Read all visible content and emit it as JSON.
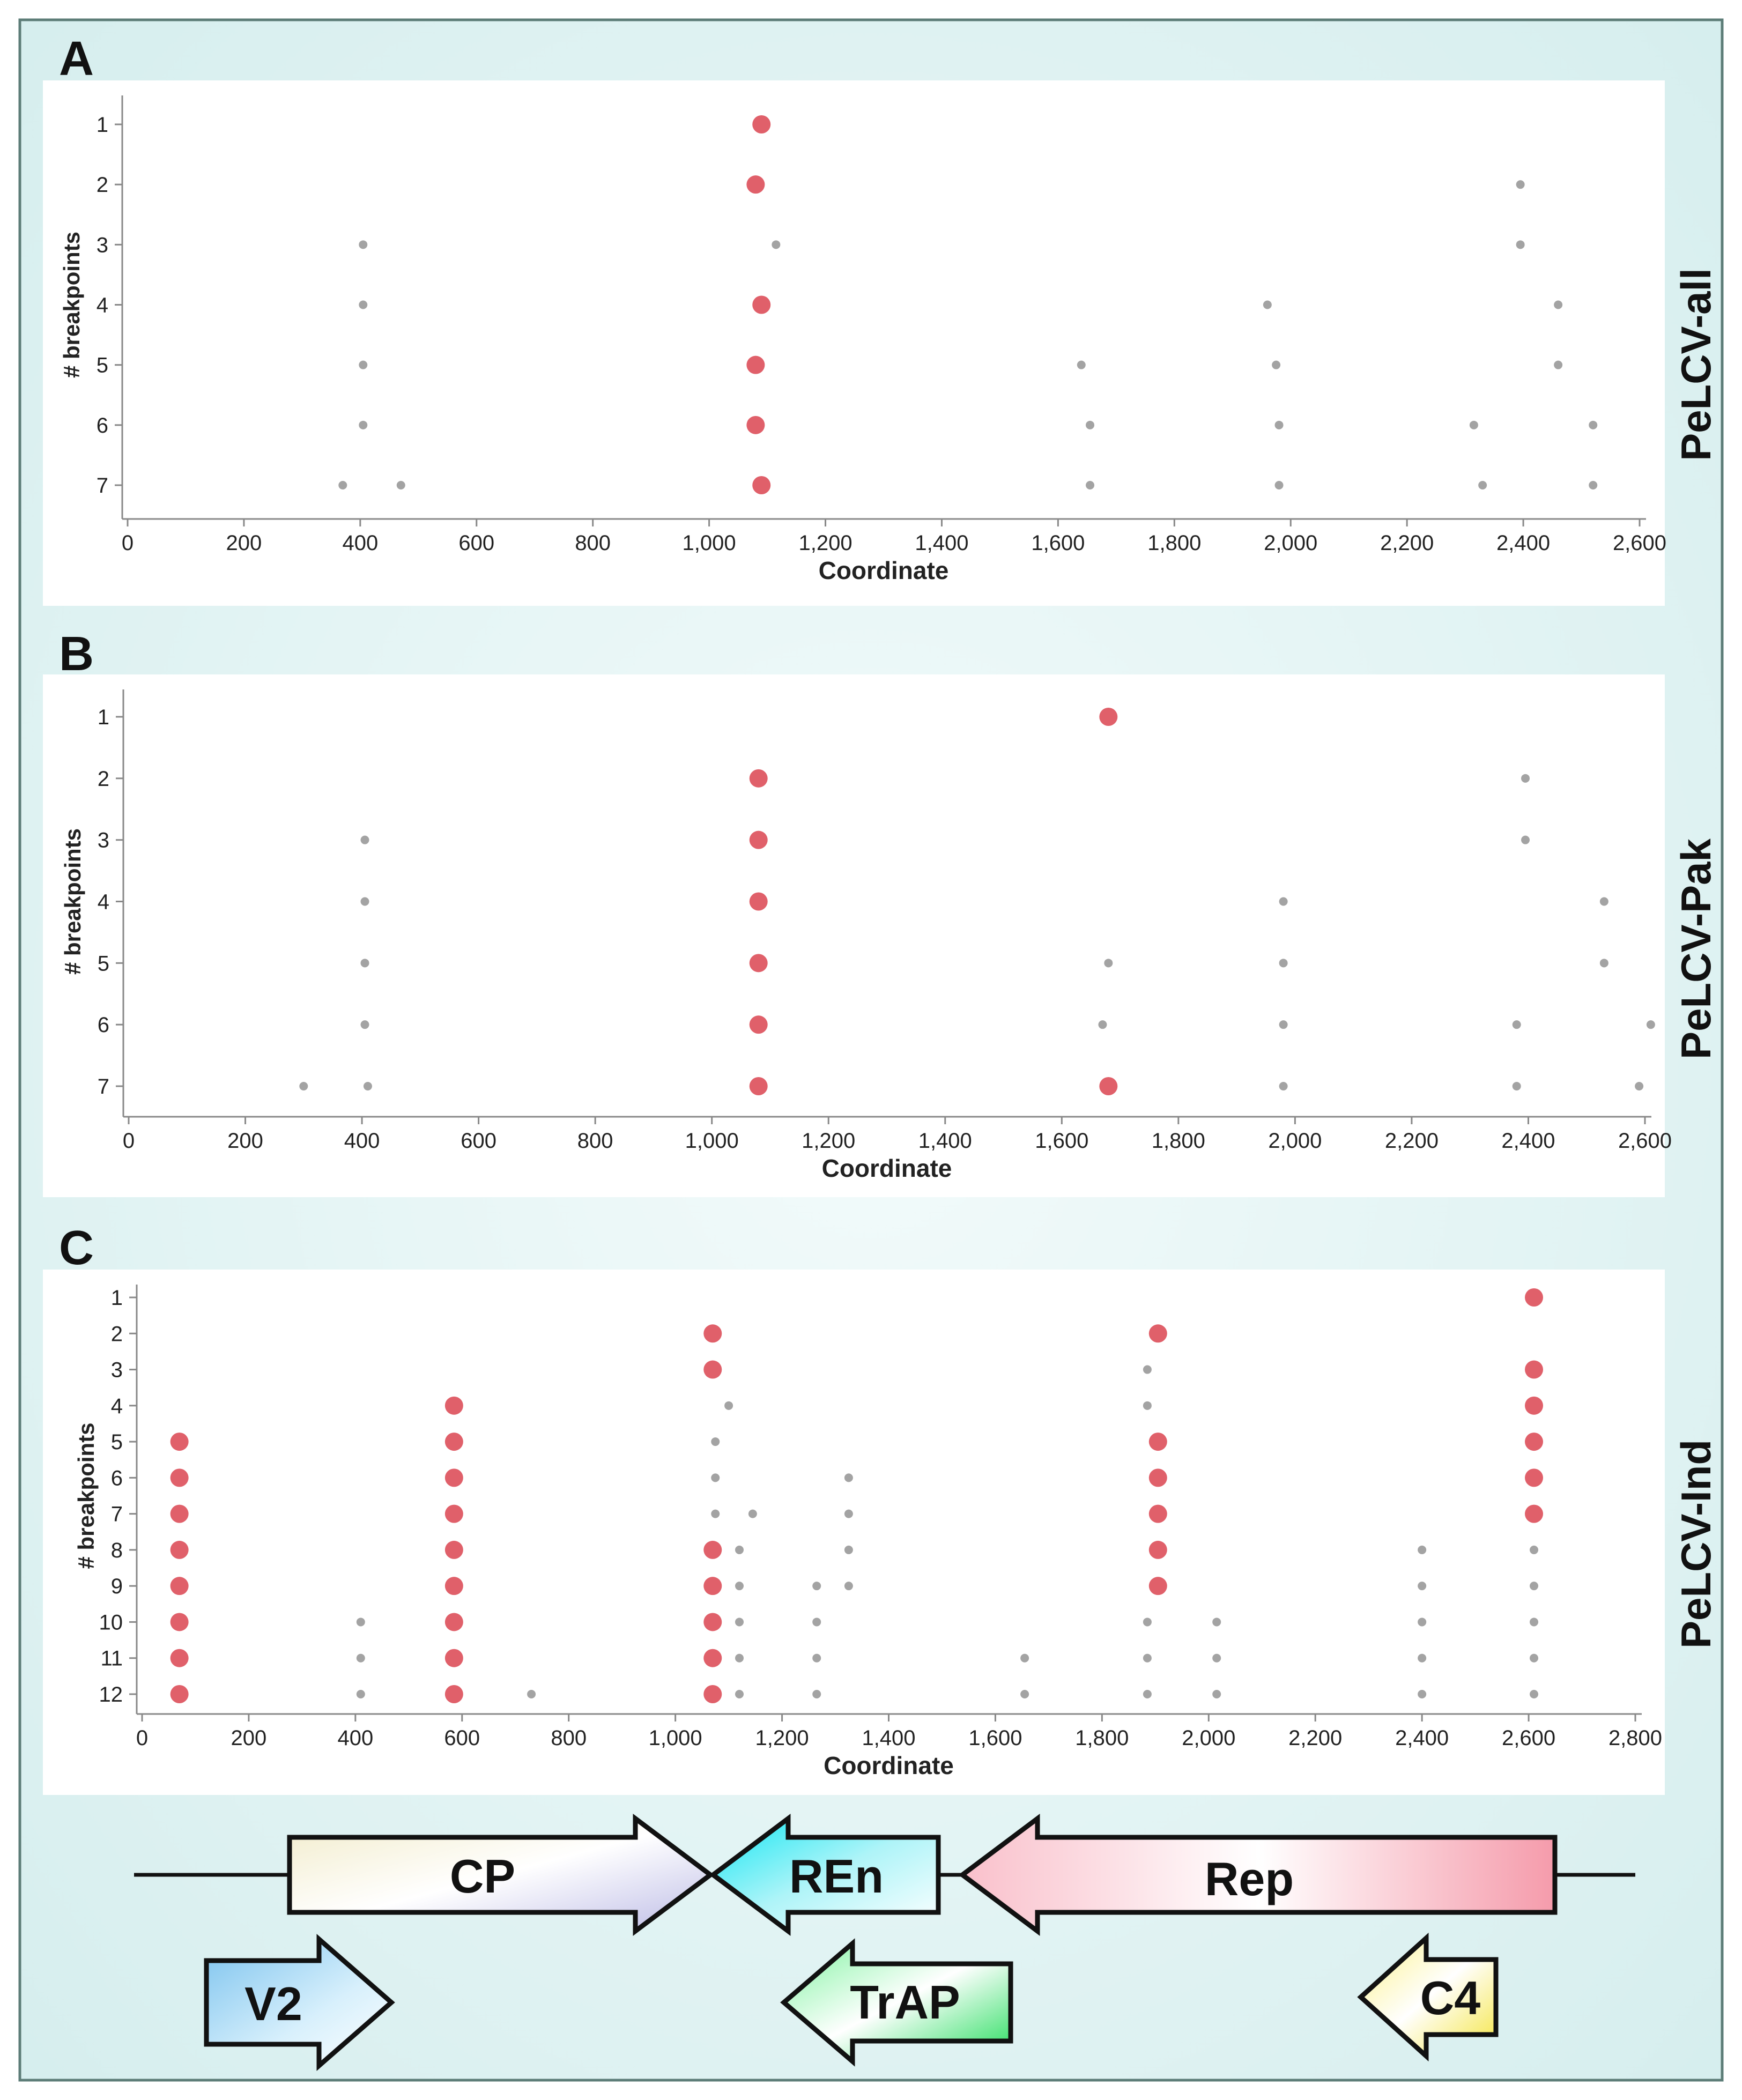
{
  "colors": {
    "background": "#e6f4f4",
    "panel": "#ffffff",
    "frame": "#5d7d78",
    "axis": "#888888",
    "major_dot": "#e0606a",
    "minor_dot": "#a3a3a3",
    "text": "#222222"
  },
  "panels": [
    {
      "letter": "A",
      "side_label": "PeLCV-all",
      "chart_title": ""
    },
    {
      "letter": "B",
      "side_label": "PeLCV-Pak",
      "chart_title": ""
    },
    {
      "letter": "C",
      "side_label": "PeLCV-Ind",
      "chart_title": ""
    }
  ],
  "genes": [
    {
      "label": "CP",
      "direction": "right",
      "gradient": [
        "#f2eccb",
        "#ffffff",
        "#bdbce6"
      ]
    },
    {
      "label": "REn",
      "direction": "left",
      "gradient": [
        "#12e6f2",
        "#aef4f8",
        "#ffffff"
      ]
    },
    {
      "label": "Rep",
      "direction": "left",
      "gradient": [
        "#f9c0cb",
        "#ffffff",
        "#f59bab"
      ]
    },
    {
      "label": "V2",
      "direction": "right",
      "gradient": [
        "#7cc3ee",
        "#d8f0fc",
        "#ffffff"
      ]
    },
    {
      "label": "TrAP",
      "direction": "left",
      "gradient": [
        "#7ff3a0",
        "#ffffff",
        "#1fdc58"
      ]
    },
    {
      "label": "C4",
      "direction": "left",
      "gradient": [
        "#fbf28a",
        "#ffffff",
        "#f4e43c"
      ]
    }
  ],
  "chart_data": [
    {
      "type": "scatter",
      "title": "",
      "xlabel": "Coordinate",
      "ylabel": "# breakpoints",
      "xlim": [
        0,
        2600
      ],
      "xticks": [
        0,
        200,
        400,
        600,
        800,
        1000,
        1200,
        1400,
        1600,
        1800,
        2000,
        2200,
        2400,
        2600
      ],
      "xtick_labels": [
        "0",
        "200",
        "400",
        "600",
        "800",
        "1,000",
        "1,200",
        "1,400",
        "1,600",
        "1,800",
        "2,000",
        "2,200",
        "2,400",
        "2,600"
      ],
      "yticks": [
        1,
        2,
        3,
        4,
        5,
        6,
        7
      ],
      "grid": false,
      "series": [
        {
          "name": "major",
          "points": [
            [
              1090,
              1
            ],
            [
              1080,
              2
            ],
            [
              1090,
              4
            ],
            [
              1080,
              5
            ],
            [
              1080,
              6
            ],
            [
              1090,
              7
            ]
          ]
        },
        {
          "name": "minor",
          "points": [
            [
              2395,
              2
            ],
            [
              405,
              3
            ],
            [
              1115,
              3
            ],
            [
              2395,
              3
            ],
            [
              405,
              4
            ],
            [
              1960,
              4
            ],
            [
              2460,
              4
            ],
            [
              405,
              5
            ],
            [
              1640,
              5
            ],
            [
              1975,
              5
            ],
            [
              2460,
              5
            ],
            [
              405,
              6
            ],
            [
              1655,
              6
            ],
            [
              1980,
              6
            ],
            [
              2315,
              6
            ],
            [
              2520,
              6
            ],
            [
              370,
              7
            ],
            [
              470,
              7
            ],
            [
              1655,
              7
            ],
            [
              1980,
              7
            ],
            [
              2330,
              7
            ],
            [
              2520,
              7
            ]
          ]
        }
      ]
    },
    {
      "type": "scatter",
      "title": "",
      "xlabel": "Coordinate",
      "ylabel": "# breakpoints",
      "xlim": [
        0,
        2600
      ],
      "xticks": [
        0,
        200,
        400,
        600,
        800,
        1000,
        1200,
        1400,
        1600,
        1800,
        2000,
        2200,
        2400,
        2600
      ],
      "xtick_labels": [
        "0",
        "200",
        "400",
        "600",
        "800",
        "1,000",
        "1,200",
        "1,400",
        "1,600",
        "1,800",
        "2,000",
        "2,200",
        "2,400",
        "2,600"
      ],
      "yticks": [
        1,
        2,
        3,
        4,
        5,
        6,
        7
      ],
      "grid": false,
      "series": [
        {
          "name": "major",
          "points": [
            [
              1680,
              1
            ],
            [
              1080,
              2
            ],
            [
              1080,
              3
            ],
            [
              1080,
              4
            ],
            [
              1080,
              5
            ],
            [
              1080,
              6
            ],
            [
              1080,
              7
            ],
            [
              1680,
              7
            ]
          ]
        },
        {
          "name": "minor",
          "points": [
            [
              2395,
              2
            ],
            [
              405,
              3
            ],
            [
              2395,
              3
            ],
            [
              405,
              4
            ],
            [
              1980,
              4
            ],
            [
              2530,
              4
            ],
            [
              405,
              5
            ],
            [
              1680,
              5
            ],
            [
              1980,
              5
            ],
            [
              2530,
              5
            ],
            [
              405,
              6
            ],
            [
              1670,
              6
            ],
            [
              1980,
              6
            ],
            [
              2380,
              6
            ],
            [
              2610,
              6
            ],
            [
              300,
              7
            ],
            [
              410,
              7
            ],
            [
              1980,
              7
            ],
            [
              2380,
              7
            ],
            [
              2590,
              7
            ]
          ]
        }
      ]
    },
    {
      "type": "scatter",
      "title": "",
      "xlabel": "Coordinate",
      "ylabel": "# breakpoints",
      "xlim": [
        0,
        2800
      ],
      "xticks": [
        0,
        200,
        400,
        600,
        800,
        1000,
        1200,
        1400,
        1600,
        1800,
        2000,
        2200,
        2400,
        2600,
        2800
      ],
      "xtick_labels": [
        "0",
        "200",
        "400",
        "600",
        "800",
        "1,000",
        "1,200",
        "1,400",
        "1,600",
        "1,800",
        "2,000",
        "2,200",
        "2,400",
        "2,600",
        "2,800"
      ],
      "yticks": [
        1,
        2,
        3,
        4,
        5,
        6,
        7,
        8,
        9,
        10,
        11,
        12
      ],
      "grid": false,
      "series": [
        {
          "name": "major",
          "points": [
            [
              2610,
              1
            ],
            [
              1070,
              2
            ],
            [
              1905,
              2
            ],
            [
              1070,
              3
            ],
            [
              2610,
              3
            ],
            [
              585,
              4
            ],
            [
              2610,
              4
            ],
            [
              70,
              5
            ],
            [
              585,
              5
            ],
            [
              1905,
              5
            ],
            [
              2610,
              5
            ],
            [
              70,
              6
            ],
            [
              585,
              6
            ],
            [
              1905,
              6
            ],
            [
              2610,
              6
            ],
            [
              70,
              7
            ],
            [
              585,
              7
            ],
            [
              1905,
              7
            ],
            [
              2610,
              7
            ],
            [
              70,
              8
            ],
            [
              585,
              8
            ],
            [
              1070,
              8
            ],
            [
              1905,
              8
            ],
            [
              70,
              9
            ],
            [
              585,
              9
            ],
            [
              1070,
              9
            ],
            [
              1905,
              9
            ],
            [
              70,
              10
            ],
            [
              585,
              10
            ],
            [
              1070,
              10
            ],
            [
              70,
              11
            ],
            [
              585,
              11
            ],
            [
              1070,
              11
            ],
            [
              70,
              12
            ],
            [
              585,
              12
            ],
            [
              1070,
              12
            ]
          ]
        },
        {
          "name": "minor",
          "points": [
            [
              1885,
              3
            ],
            [
              1100,
              4
            ],
            [
              1885,
              4
            ],
            [
              1075,
              5
            ],
            [
              1075,
              6
            ],
            [
              1325,
              6
            ],
            [
              1075,
              7
            ],
            [
              1145,
              7
            ],
            [
              1325,
              7
            ],
            [
              1120,
              8
            ],
            [
              1325,
              8
            ],
            [
              2400,
              8
            ],
            [
              2610,
              8
            ],
            [
              1120,
              9
            ],
            [
              1265,
              9
            ],
            [
              1325,
              9
            ],
            [
              2400,
              9
            ],
            [
              2610,
              9
            ],
            [
              410,
              10
            ],
            [
              1120,
              10
            ],
            [
              1265,
              10
            ],
            [
              1885,
              10
            ],
            [
              2015,
              10
            ],
            [
              2400,
              10
            ],
            [
              2610,
              10
            ],
            [
              410,
              11
            ],
            [
              1120,
              11
            ],
            [
              1265,
              11
            ],
            [
              1655,
              11
            ],
            [
              1885,
              11
            ],
            [
              2015,
              11
            ],
            [
              2400,
              11
            ],
            [
              2610,
              11
            ],
            [
              410,
              12
            ],
            [
              730,
              12
            ],
            [
              1120,
              12
            ],
            [
              1265,
              12
            ],
            [
              1655,
              12
            ],
            [
              1885,
              12
            ],
            [
              2015,
              12
            ],
            [
              2400,
              12
            ],
            [
              2610,
              12
            ]
          ]
        }
      ]
    }
  ]
}
